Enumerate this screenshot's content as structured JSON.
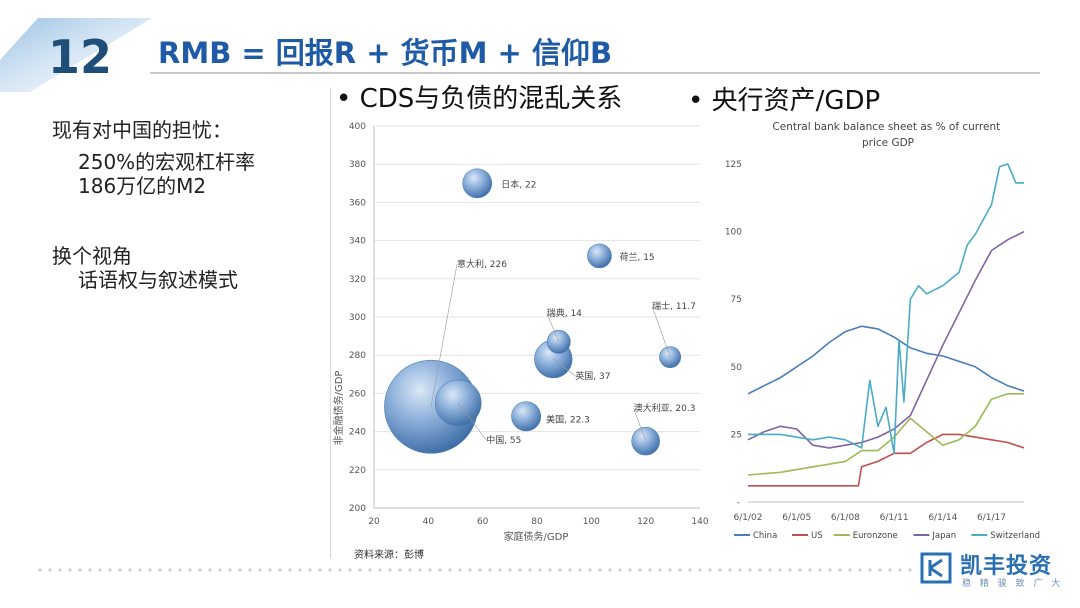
{
  "header": {
    "slide_number": "12",
    "title": "RMB = 回报R + 货币M + 信仰B"
  },
  "left_panel": {
    "heading": "现有对中国的担忧：",
    "items": [
      "250%的宏观杠杆率",
      "186万亿的M2"
    ],
    "heading2": "换个视角",
    "items2": [
      "话语权与叙述模式"
    ]
  },
  "bullets": {
    "left": "CDS与负债的混乱关系",
    "right": "央行资产/GDP"
  },
  "source": "资料来源：彭博",
  "logo": {
    "name": "凯丰投资",
    "tagline": "稳 精 骏 致 广 大"
  },
  "colors": {
    "title_blue": "#1f5aa6",
    "bubble": "#6f98c9",
    "China": "#4a7ebb",
    "US": "#c0504d",
    "Euronzone": "#9bbb59",
    "Japan": "#8064a2",
    "Switzerland": "#4bacc6"
  },
  "chart_data": [
    {
      "type": "scatter",
      "subtype": "bubble",
      "xlabel": "家庭债务/GDP",
      "ylabel": "非金融债务/GDP",
      "xlim": [
        20,
        140
      ],
      "ylim": [
        200,
        400
      ],
      "xticks": [
        20,
        40,
        60,
        80,
        100,
        120,
        140
      ],
      "yticks": [
        200,
        220,
        240,
        260,
        280,
        300,
        320,
        340,
        360,
        380,
        400
      ],
      "grid": "horizontal",
      "points": [
        {
          "label": "日本, 22",
          "x": 58,
          "y": 370,
          "size": 22
        },
        {
          "label": "荷兰, 15",
          "x": 103,
          "y": 332,
          "size": 15
        },
        {
          "label": "瑞典, 14",
          "x": 88,
          "y": 287,
          "size": 14
        },
        {
          "label": "瑞士, 11.7",
          "x": 129,
          "y": 279,
          "size": 11.7
        },
        {
          "label": "英国, 37",
          "x": 86,
          "y": 278,
          "size": 37
        },
        {
          "label": "意大利, 226",
          "x": 41,
          "y": 253,
          "size": 226
        },
        {
          "label": "中国, 55",
          "x": 51,
          "y": 255,
          "size": 55
        },
        {
          "label": "美国, 22.3",
          "x": 76,
          "y": 248,
          "size": 22.3
        },
        {
          "label": "澳大利亚, 20.3",
          "x": 120,
          "y": 235,
          "size": 20.3
        }
      ]
    },
    {
      "type": "line",
      "title": "Central bank balance sheet as % of current price GDP",
      "ylim": [
        0,
        125
      ],
      "yticks": [
        25,
        50,
        75,
        100,
        125
      ],
      "xlim": [
        2002,
        2019
      ],
      "xticks": [
        "6/1/02",
        "6/1/05",
        "6/1/08",
        "6/1/11",
        "6/1/14",
        "6/1/17"
      ],
      "series": [
        {
          "name": "China",
          "x": [
            2002,
            2003,
            2004,
            2005,
            2006,
            2007,
            2008,
            2009,
            2010,
            2011,
            2012,
            2013,
            2014,
            2015,
            2016,
            2017,
            2018,
            2019
          ],
          "values": [
            40,
            43,
            46,
            50,
            54,
            59,
            63,
            65,
            64,
            61,
            57,
            55,
            54,
            52,
            50,
            46,
            43,
            41
          ]
        },
        {
          "name": "US",
          "x": [
            2002,
            2004,
            2006,
            2008,
            2008.8,
            2009,
            2010,
            2011,
            2012,
            2013,
            2014,
            2015,
            2016,
            2017,
            2018,
            2019
          ],
          "values": [
            6,
            6,
            6,
            6,
            6,
            13,
            15,
            18,
            18,
            22,
            25,
            25,
            24,
            23,
            22,
            20
          ]
        },
        {
          "name": "Euronzone",
          "x": [
            2002,
            2004,
            2006,
            2008,
            2009,
            2010,
            2011,
            2012,
            2013,
            2014,
            2015,
            2016,
            2017,
            2018,
            2019
          ],
          "values": [
            10,
            11,
            13,
            15,
            19,
            19,
            24,
            31,
            26,
            21,
            23,
            28,
            38,
            40,
            40
          ]
        },
        {
          "name": "Japan",
          "x": [
            2002,
            2003,
            2004,
            2005,
            2006,
            2007,
            2008,
            2009,
            2010,
            2011,
            2012,
            2013,
            2014,
            2015,
            2016,
            2017,
            2018,
            2019
          ],
          "values": [
            23,
            26,
            28,
            27,
            21,
            20,
            21,
            22,
            24,
            27,
            32,
            45,
            58,
            70,
            82,
            93,
            97,
            100
          ]
        },
        {
          "name": "Switzerland",
          "x": [
            2002,
            2004,
            2006,
            2007,
            2008,
            2009,
            2009.5,
            2010,
            2010.5,
            2011,
            2011.3,
            2011.6,
            2012,
            2012.5,
            2013,
            2014,
            2015,
            2015.5,
            2016,
            2017,
            2017.5,
            2018,
            2018.5,
            2019
          ],
          "values": [
            25,
            25,
            23,
            24,
            23,
            20,
            45,
            28,
            35,
            18,
            60,
            37,
            75,
            80,
            77,
            80,
            85,
            95,
            99,
            110,
            124,
            125,
            118,
            118
          ]
        }
      ]
    }
  ]
}
